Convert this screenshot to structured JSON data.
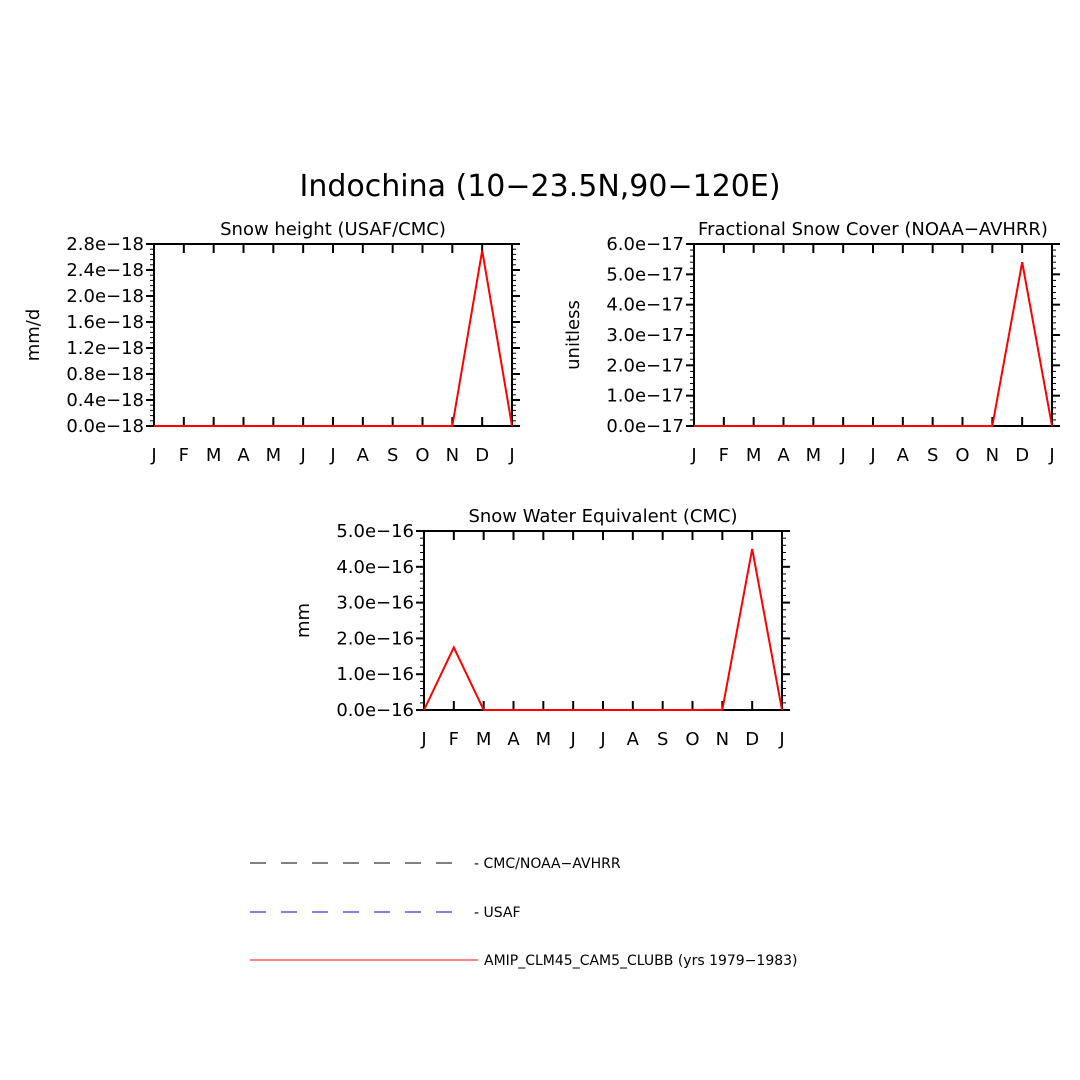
{
  "title": "Indochina (10−23.5N,90−120E)",
  "colors": {
    "obs_primary": "#000000",
    "obs_usaf": "#0000cc",
    "model": "#ff0000",
    "axis": "#000000"
  },
  "legend": {
    "items": [
      {
        "label": "- CMC/NOAA−AVHRR",
        "style": "dashed",
        "color": "#000000"
      },
      {
        "label": "- USAF",
        "style": "dashed",
        "color": "#0000cc"
      },
      {
        "label": "AMIP_CLM45_CAM5_CLUBB (yrs 1979−1983)",
        "style": "solid",
        "color": "#ff0000"
      }
    ]
  },
  "chart_data": [
    {
      "type": "line",
      "title": "Snow height (USAF/CMC)",
      "ylabel": "mm/d",
      "xlabel": "",
      "x": [
        "J",
        "F",
        "M",
        "A",
        "M",
        "J",
        "J",
        "A",
        "S",
        "O",
        "N",
        "D",
        "J"
      ],
      "yticks": [
        "0.0e−18",
        "0.4e−18",
        "0.8e−18",
        "1.2e−18",
        "1.6e−18",
        "2.0e−18",
        "2.4e−18",
        "2.8e−18"
      ],
      "ylim": [
        0,
        2.8e-18
      ],
      "series": [
        {
          "values": [
            0,
            0,
            0,
            0,
            0,
            0,
            0,
            0,
            0,
            0,
            0,
            0,
            0
          ],
          "style": "dashed",
          "color": "#000000"
        },
        {
          "values": [
            0,
            0,
            0,
            0,
            0,
            0,
            0,
            0,
            0,
            0,
            0,
            2.7e-18,
            0
          ],
          "style": "solid",
          "color": "#ff0000"
        }
      ]
    },
    {
      "type": "line",
      "title": "Fractional Snow Cover (NOAA−AVHRR)",
      "ylabel": "unitless",
      "xlabel": "",
      "x": [
        "J",
        "F",
        "M",
        "A",
        "M",
        "J",
        "J",
        "A",
        "S",
        "O",
        "N",
        "D",
        "J"
      ],
      "yticks": [
        "0.0e−17",
        "1.0e−17",
        "2.0e−17",
        "3.0e−17",
        "4.0e−17",
        "5.0e−17",
        "6.0e−17"
      ],
      "ylim": [
        0,
        6e-17
      ],
      "series": [
        {
          "values": [
            0,
            0,
            0,
            0,
            0,
            0,
            0,
            0,
            0,
            0,
            0,
            0,
            0
          ],
          "style": "dashed",
          "color": "#000000"
        },
        {
          "values": [
            0,
            0,
            0,
            0,
            0,
            0,
            0,
            0,
            0,
            0,
            0,
            5.4e-17,
            0
          ],
          "style": "solid",
          "color": "#ff0000"
        }
      ]
    },
    {
      "type": "line",
      "title": "Snow Water Equivalent (CMC)",
      "ylabel": "mm",
      "xlabel": "",
      "x": [
        "J",
        "F",
        "M",
        "A",
        "M",
        "J",
        "J",
        "A",
        "S",
        "O",
        "N",
        "D",
        "J"
      ],
      "yticks": [
        "0.0e−16",
        "1.0e−16",
        "2.0e−16",
        "3.0e−16",
        "4.0e−16",
        "5.0e−16"
      ],
      "ylim": [
        0,
        5e-16
      ],
      "series": [
        {
          "values": [
            0,
            0,
            0,
            0,
            0,
            0,
            0,
            0,
            0,
            0,
            0,
            0,
            0
          ],
          "style": "dashed",
          "color": "#000000"
        },
        {
          "values": [
            0,
            1.75e-16,
            0,
            0,
            0,
            0,
            0,
            0,
            0,
            0,
            5e-19,
            4.5e-16,
            0
          ],
          "style": "solid",
          "color": "#ff0000"
        }
      ]
    }
  ]
}
